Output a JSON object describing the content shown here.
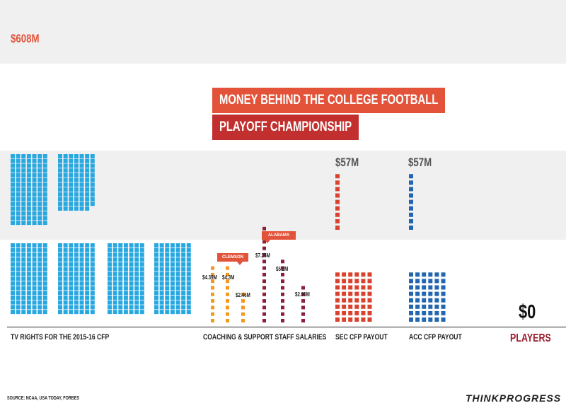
{
  "title": {
    "line1": "MONEY BEHIND THE COLLEGE FOOTBALL",
    "line2": "PLAYOFF CHAMPIONSHIP"
  },
  "source": "SOURCE: NCAA, USA TODAY, FORBES",
  "logo": "THINKPROGRESS",
  "colors": {
    "tv": "#29a8e0",
    "clemson": "#f39a1e",
    "alabama": "#8c1f3a",
    "sec": "#d9432e",
    "acc": "#2266b0",
    "title_top": "#e2533a",
    "title_bottom": "#c1302e",
    "players": "#9b1c2c",
    "band": "#f0f0f0"
  },
  "chart_data": {
    "type": "bar",
    "unit": "$M",
    "categories": [
      "TV RIGHTS FOR THE 2015-16 CFP",
      "COACHING & SUPPORT STAFF SALARIES",
      "SEC CFP PAYOUT",
      "ACC CFP PAYOUT",
      "PLAYERS"
    ],
    "tv_rights": {
      "value": 608,
      "label": "$608M",
      "axis_label": "TV RIGHTS FOR THE 2015-16 CFP"
    },
    "salaries": {
      "axis_label": "COACHING & SUPPORT STAFF SALARIES",
      "groups": [
        {
          "name": "CLEMSON",
          "values": [
            4.39,
            4.3,
            2.46
          ],
          "labels": [
            "$4.39M",
            "$4.3M",
            "$2.46M"
          ]
        },
        {
          "name": "ALABAMA",
          "values": [
            7.25,
            5.2,
            2.86
          ],
          "labels": [
            "$7.25M",
            "$5.2M",
            "$2.86M"
          ]
        }
      ]
    },
    "sec_payout": {
      "value": 57,
      "label": "$57M",
      "axis_label": "SEC CFP PAYOUT"
    },
    "acc_payout": {
      "value": 57,
      "label": "$57M",
      "axis_label": "ACC CFP PAYOUT"
    },
    "players": {
      "value": 0,
      "label": "$0",
      "axis_label": "PLAYERS"
    }
  }
}
